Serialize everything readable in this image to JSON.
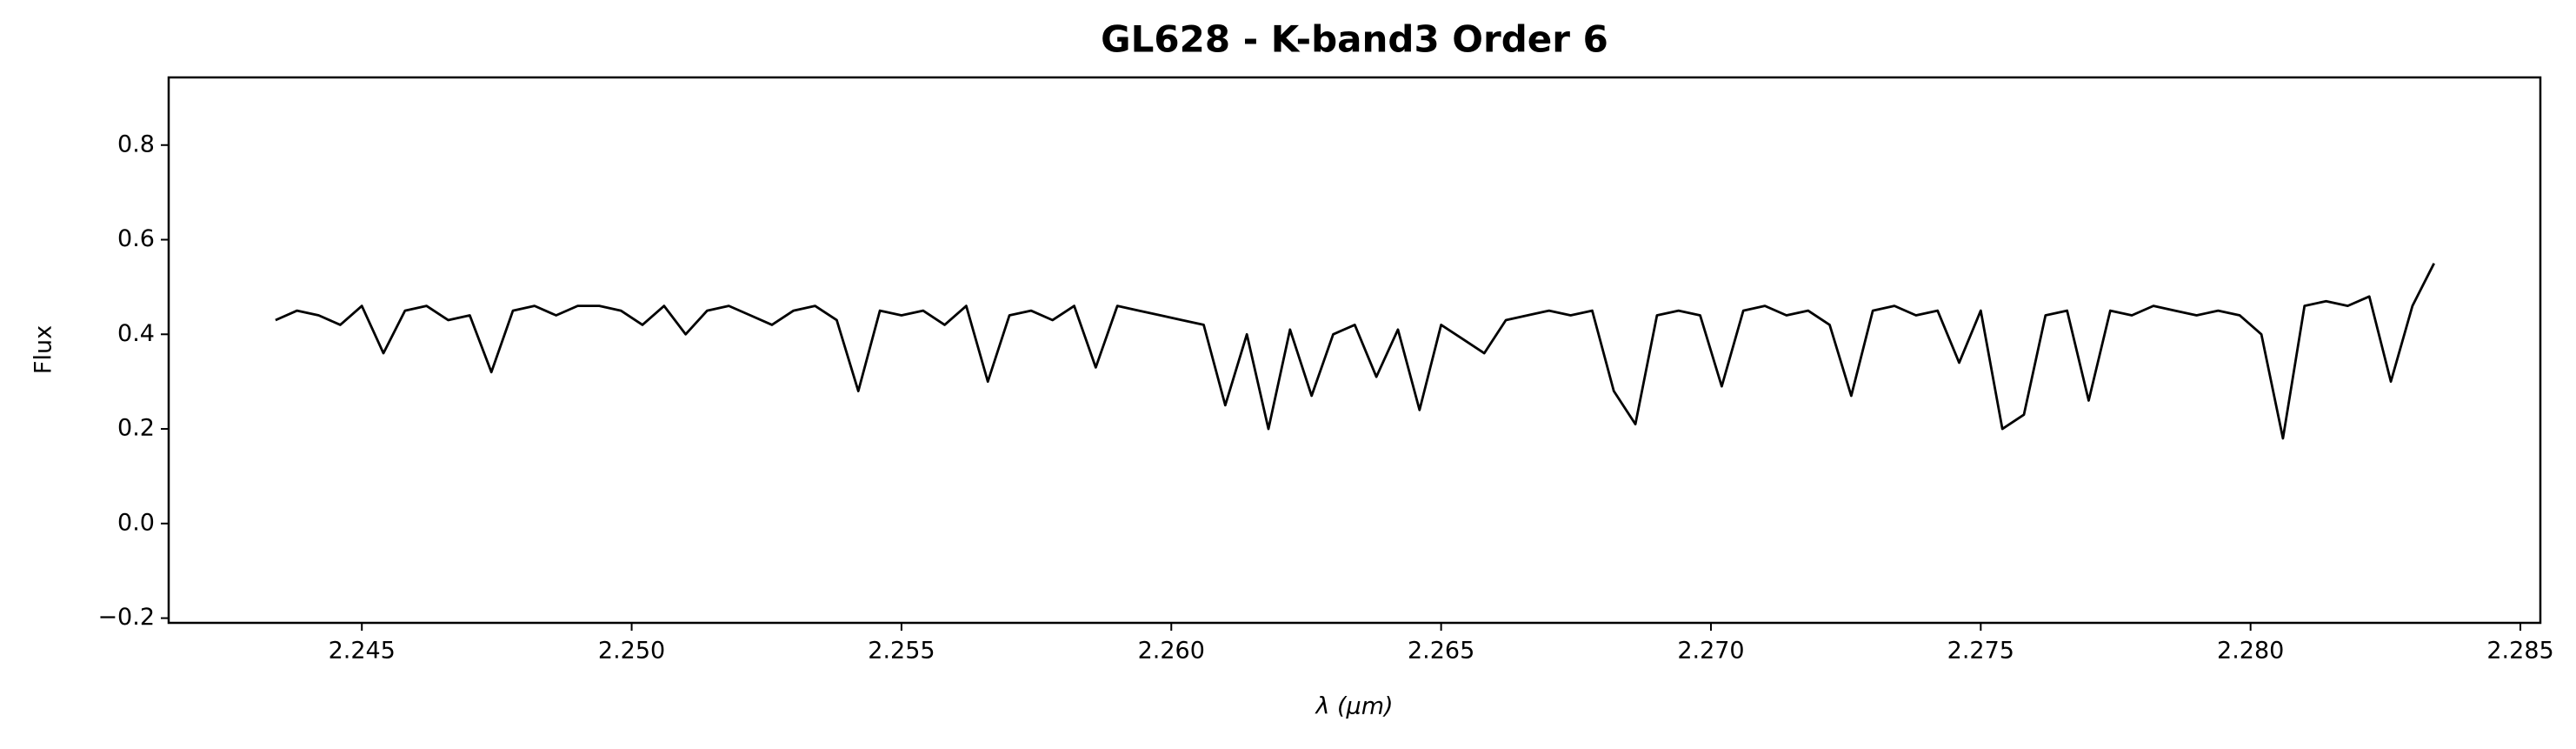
{
  "chart_data": {
    "type": "line",
    "title": "GL628 - K-band3 Order 6",
    "x_label": "λ (μm)",
    "y_label": "Flux",
    "color": "#000000",
    "grid": false,
    "xlim": [
      2.24142,
      2.28537
    ],
    "ylim": [
      -0.21,
      0.943
    ],
    "xticks": [
      2.245,
      {
        "value": 2.25,
        "label": "2.250"
      },
      2.255,
      {
        "value": 2.26,
        "label": "2.260"
      },
      2.265,
      {
        "value": 2.27,
        "label": "2.270"
      },
      2.275,
      {
        "value": 2.28,
        "label": "2.280"
      },
      2.285
    ],
    "yticks": [
      {
        "value": -0.2,
        "label": "−0.2"
      },
      {
        "value": 0,
        "label": "0.0"
      },
      0.2,
      0.4,
      0.6,
      0.8
    ],
    "x": [
      2.2434,
      2.2438,
      2.2442,
      2.2446,
      2.245,
      2.2454,
      2.2458,
      2.2462,
      2.2466,
      2.247,
      2.2474,
      2.2478,
      2.2482,
      2.2486,
      2.249,
      2.2494,
      2.2498,
      2.2502,
      2.2506,
      2.251,
      2.2514,
      2.2518,
      2.2522,
      2.2526,
      2.253,
      2.2534,
      2.2538,
      2.2542,
      2.2546,
      2.255,
      2.2554,
      2.2558,
      2.2562,
      2.2566,
      2.257,
      2.2574,
      2.2578,
      2.2582,
      2.2586,
      2.259,
      2.2594,
      2.2598,
      2.2602,
      2.2606,
      2.261,
      2.2614,
      2.2618,
      2.2622,
      2.2626,
      2.263,
      2.2634,
      2.2638,
      2.2642,
      2.2646,
      2.265,
      2.2654,
      2.2658,
      2.2662,
      2.2666,
      2.267,
      2.2674,
      2.2678,
      2.2682,
      2.2686,
      2.269,
      2.2694,
      2.2698,
      2.2702,
      2.2706,
      2.271,
      2.2714,
      2.2718,
      2.2722,
      2.2726,
      2.273,
      2.2734,
      2.2738,
      2.2742,
      2.2746,
      2.275,
      2.2754,
      2.2758,
      2.2762,
      2.2766,
      2.277,
      2.2774,
      2.2778,
      2.2782,
      2.2786,
      2.279,
      2.2794,
      2.2798,
      2.2802,
      2.2806,
      2.281,
      2.2814,
      2.2818,
      2.2822,
      2.2826,
      2.283,
      2.2834
    ],
    "values": [
      0.43,
      0.45,
      0.44,
      0.42,
      0.46,
      0.36,
      0.45,
      0.46,
      0.43,
      0.44,
      0.32,
      0.45,
      0.46,
      0.44,
      0.46,
      0.46,
      0.45,
      0.42,
      0.46,
      0.4,
      0.45,
      0.46,
      0.44,
      0.42,
      0.45,
      0.46,
      0.43,
      0.28,
      0.45,
      0.44,
      0.45,
      0.42,
      0.46,
      0.3,
      0.44,
      0.45,
      0.43,
      0.46,
      0.33,
      0.46,
      0.45,
      0.44,
      0.43,
      0.42,
      0.25,
      0.4,
      0.2,
      0.41,
      0.27,
      0.4,
      0.42,
      0.31,
      0.41,
      0.24,
      0.42,
      0.39,
      0.36,
      0.43,
      0.44,
      0.45,
      0.44,
      0.45,
      0.28,
      0.21,
      0.44,
      0.45,
      0.44,
      0.29,
      0.45,
      0.46,
      0.44,
      0.45,
      0.42,
      0.27,
      0.45,
      0.46,
      0.44,
      0.45,
      0.34,
      0.45,
      0.2,
      0.23,
      0.44,
      0.45,
      0.26,
      0.45,
      0.44,
      0.46,
      0.45,
      0.44,
      0.45,
      0.44,
      0.4,
      0.18,
      0.46,
      0.47,
      0.46,
      0.48,
      0.3,
      0.46,
      0.55
    ]
  }
}
